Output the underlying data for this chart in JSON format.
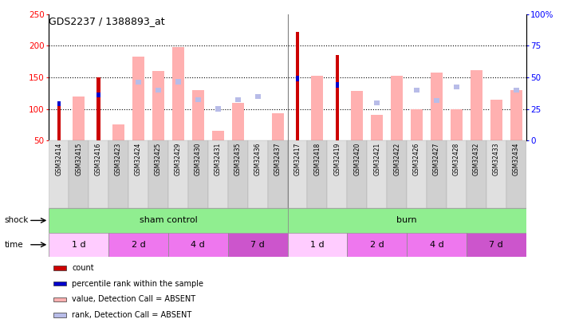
{
  "title": "GDS2237 / 1388893_at",
  "samples": [
    "GSM32414",
    "GSM32415",
    "GSM32416",
    "GSM32423",
    "GSM32424",
    "GSM32425",
    "GSM32429",
    "GSM32430",
    "GSM32431",
    "GSM32435",
    "GSM32436",
    "GSM32437",
    "GSM32417",
    "GSM32418",
    "GSM32419",
    "GSM32420",
    "GSM32421",
    "GSM32422",
    "GSM32426",
    "GSM32427",
    "GSM32428",
    "GSM32432",
    "GSM32433",
    "GSM32434"
  ],
  "count_values": [
    112,
    null,
    150,
    null,
    null,
    null,
    null,
    null,
    null,
    null,
    null,
    null,
    222,
    null,
    185,
    null,
    null,
    null,
    null,
    null,
    null,
    null,
    null,
    null
  ],
  "percentile_rank": [
    108,
    null,
    122,
    null,
    null,
    null,
    null,
    null,
    null,
    null,
    null,
    null,
    148,
    null,
    138,
    null,
    null,
    null,
    null,
    null,
    null,
    null,
    null,
    null
  ],
  "value_absent": [
    null,
    120,
    null,
    75,
    183,
    160,
    198,
    130,
    65,
    110,
    null,
    93,
    null,
    152,
    null,
    128,
    91,
    153,
    100,
    158,
    100,
    161,
    115,
    130
  ],
  "rank_absent": [
    null,
    null,
    null,
    null,
    142,
    130,
    143,
    115,
    100,
    115,
    120,
    null,
    null,
    null,
    null,
    null,
    110,
    null,
    130,
    113,
    135,
    null,
    null,
    130
  ],
  "ylim_left": [
    50,
    250
  ],
  "yticks_left": [
    50,
    100,
    150,
    200,
    250
  ],
  "yticks_right": [
    0,
    25,
    50,
    75,
    100
  ],
  "color_count": "#cc0000",
  "color_percentile": "#0000cc",
  "color_value_absent": "#ffb0b0",
  "color_rank_absent": "#b8bce8",
  "shock_green": "#90ee90",
  "time_colors": [
    "#ffffff",
    "#ee82ee",
    "#da70d6",
    "#cc55cc"
  ],
  "label_bg": "#d8d8d8",
  "chart_bg": "#ffffff"
}
